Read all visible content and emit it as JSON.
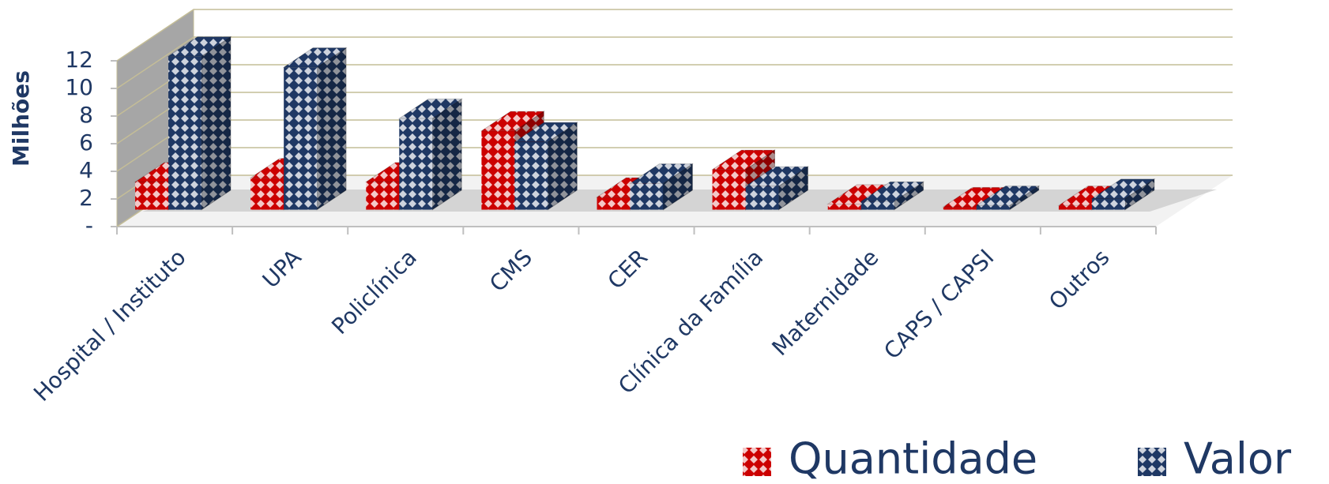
{
  "chart_data": {
    "type": "bar3d",
    "categories": [
      "Hospital / Instituto",
      "UPA",
      "Policlínica",
      "CMS",
      "CER",
      "Clínica da Família",
      "Maternidade",
      "CAPS / CAPSI",
      "Outros"
    ],
    "series": [
      {
        "name": "Quantidade",
        "color": "#cc0000",
        "values": [
          2.0,
          2.3,
          2.0,
          5.7,
          0.9,
          2.9,
          0.4,
          0.2,
          0.3
        ]
      },
      {
        "name": "Valor",
        "color": "#1f3864",
        "values": [
          11.1,
          10.3,
          6.6,
          4.9,
          1.9,
          1.7,
          0.6,
          0.3,
          0.8
        ]
      }
    ],
    "y_label": "Milhões",
    "ylim": [
      0,
      12
    ],
    "yticks": [
      {
        "value": 0,
        "label": "-"
      },
      2,
      4,
      6,
      8,
      10,
      12
    ],
    "grid": true,
    "legend": "bottom-right"
  }
}
